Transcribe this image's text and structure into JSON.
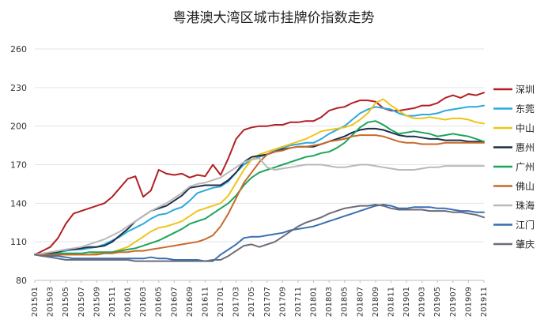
{
  "chart_data": {
    "type": "line",
    "title": "粤港澳大湾区城市挂牌价指数走势",
    "xlabel": "",
    "ylabel": "",
    "ylim": [
      80,
      260
    ],
    "yticks": [
      80,
      110,
      140,
      170,
      200,
      230,
      260
    ],
    "grid": "horizontal",
    "legend_position": "right",
    "x": [
      "201501",
      "201502",
      "201503",
      "201504",
      "201505",
      "201506",
      "201507",
      "201508",
      "201509",
      "201510",
      "201511",
      "201512",
      "201601",
      "201602",
      "201603",
      "201604",
      "201605",
      "201606",
      "201607",
      "201608",
      "201609",
      "201610",
      "201611",
      "201612",
      "201701",
      "201702",
      "201703",
      "201704",
      "201705",
      "201706",
      "201707",
      "201708",
      "201709",
      "201710",
      "201711",
      "201712",
      "201801",
      "201802",
      "201803",
      "201804",
      "201805",
      "201806",
      "201807",
      "201808",
      "201809",
      "201810",
      "201811",
      "201812",
      "201901",
      "201902",
      "201903",
      "201904",
      "201905",
      "201906",
      "201907",
      "201908",
      "201909",
      "201910",
      "201911"
    ],
    "xtick_labels": [
      "201501",
      "201503",
      "201505",
      "201507",
      "201509",
      "201511",
      "201601",
      "201603",
      "201605",
      "201607",
      "201609",
      "201611",
      "201701",
      "201703",
      "201705",
      "201707",
      "201709",
      "201711",
      "201801",
      "201803",
      "201805",
      "201807",
      "201809",
      "201811",
      "201901",
      "201903",
      "201905",
      "201907",
      "201909",
      "201911"
    ],
    "series": [
      {
        "name": "深圳",
        "color": "#b21f24",
        "values": [
          100,
          103,
          106,
          113,
          124,
          132,
          134,
          136,
          138,
          140,
          145,
          152,
          159,
          161,
          145,
          150,
          166,
          163,
          162,
          163,
          160,
          162,
          161,
          170,
          162,
          175,
          190,
          197,
          199,
          200,
          200,
          201,
          201,
          203,
          203,
          204,
          204,
          207,
          212,
          214,
          215,
          218,
          220,
          220,
          219,
          214,
          212,
          212,
          213,
          214,
          216,
          216,
          218,
          222,
          224,
          222,
          225,
          224,
          226
        ]
      },
      {
        "name": "东莞",
        "color": "#2ba9dc",
        "values": [
          100,
          100,
          101,
          102,
          103,
          104,
          104,
          105,
          106,
          108,
          111,
          114,
          118,
          121,
          124,
          128,
          131,
          132,
          135,
          137,
          142,
          148,
          150,
          152,
          153,
          157,
          164,
          170,
          174,
          176,
          178,
          181,
          183,
          185,
          186,
          187,
          187,
          190,
          194,
          197,
          200,
          205,
          210,
          213,
          215,
          214,
          213,
          210,
          208,
          208,
          209,
          209,
          210,
          212,
          213,
          214,
          215,
          215,
          216
        ]
      },
      {
        "name": "中山",
        "color": "#f0c419",
        "values": [
          100,
          100,
          100,
          100,
          100,
          100,
          100,
          100,
          101,
          101,
          102,
          104,
          106,
          110,
          114,
          118,
          121,
          122,
          124,
          126,
          130,
          134,
          136,
          138,
          140,
          146,
          156,
          166,
          174,
          178,
          180,
          182,
          184,
          186,
          188,
          190,
          193,
          196,
          197,
          198,
          199,
          201,
          205,
          210,
          218,
          221,
          216,
          212,
          208,
          206,
          206,
          207,
          206,
          205,
          206,
          206,
          205,
          203,
          202
        ]
      },
      {
        "name": "惠州",
        "color": "#1e2f4a",
        "values": [
          100,
          100,
          101,
          102,
          104,
          104,
          105,
          106,
          106,
          107,
          110,
          115,
          120,
          126,
          130,
          134,
          136,
          138,
          142,
          146,
          152,
          153,
          154,
          154,
          154,
          158,
          164,
          172,
          176,
          177,
          178,
          180,
          182,
          183,
          184,
          184,
          184,
          186,
          188,
          190,
          192,
          195,
          197,
          198,
          198,
          197,
          195,
          193,
          192,
          192,
          191,
          190,
          190,
          189,
          189,
          189,
          188,
          188,
          188
        ]
      },
      {
        "name": "广州",
        "color": "#1aa55a",
        "values": [
          100,
          100,
          100,
          101,
          101,
          101,
          101,
          102,
          102,
          102,
          102,
          103,
          104,
          105,
          107,
          109,
          111,
          114,
          117,
          120,
          124,
          126,
          128,
          132,
          136,
          140,
          146,
          154,
          160,
          164,
          166,
          168,
          170,
          172,
          174,
          176,
          177,
          179,
          180,
          183,
          187,
          193,
          199,
          203,
          204,
          201,
          197,
          194,
          195,
          196,
          195,
          194,
          192,
          193,
          194,
          193,
          192,
          190,
          188
        ]
      },
      {
        "name": "佛山",
        "color": "#c9682a",
        "values": [
          100,
          100,
          100,
          100,
          100,
          100,
          100,
          100,
          100,
          101,
          101,
          102,
          102,
          103,
          103,
          104,
          105,
          106,
          107,
          108,
          109,
          110,
          112,
          115,
          122,
          132,
          144,
          156,
          164,
          172,
          178,
          180,
          181,
          183,
          184,
          184,
          185,
          186,
          188,
          189,
          190,
          192,
          193,
          193,
          193,
          192,
          190,
          188,
          187,
          187,
          186,
          186,
          186,
          187,
          187,
          187,
          187,
          187,
          187
        ]
      },
      {
        "name": "珠海",
        "color": "#b9b9b9",
        "values": [
          100,
          101,
          102,
          103,
          104,
          105,
          106,
          108,
          110,
          112,
          115,
          118,
          122,
          126,
          130,
          134,
          137,
          140,
          144,
          148,
          153,
          155,
          156,
          158,
          160,
          164,
          168,
          172,
          174,
          175,
          168,
          166,
          167,
          168,
          169,
          170,
          170,
          170,
          169,
          168,
          168,
          169,
          170,
          170,
          169,
          168,
          167,
          166,
          166,
          166,
          167,
          168,
          168,
          169,
          169,
          169,
          169,
          169,
          169
        ]
      },
      {
        "name": "江门",
        "color": "#3a6fb0",
        "values": [
          100,
          99,
          99,
          99,
          98,
          97,
          97,
          97,
          97,
          97,
          97,
          97,
          97,
          97,
          97,
          98,
          97,
          97,
          96,
          96,
          96,
          96,
          95,
          95,
          100,
          104,
          108,
          113,
          114,
          114,
          115,
          116,
          117,
          119,
          120,
          121,
          122,
          124,
          126,
          128,
          130,
          132,
          134,
          136,
          138,
          139,
          138,
          136,
          136,
          137,
          137,
          137,
          136,
          136,
          135,
          134,
          134,
          133,
          133
        ]
      },
      {
        "name": "肇庆",
        "color": "#6b6b7b",
        "values": [
          100,
          99,
          98,
          97,
          96,
          96,
          96,
          96,
          96,
          96,
          96,
          96,
          96,
          95,
          95,
          95,
          95,
          95,
          95,
          95,
          95,
          95,
          95,
          96,
          96,
          99,
          103,
          107,
          108,
          106,
          108,
          110,
          114,
          118,
          122,
          125,
          127,
          129,
          132,
          134,
          136,
          137,
          138,
          138,
          139,
          138,
          136,
          135,
          135,
          135,
          135,
          134,
          134,
          134,
          133,
          133,
          132,
          131,
          129
        ]
      }
    ]
  }
}
